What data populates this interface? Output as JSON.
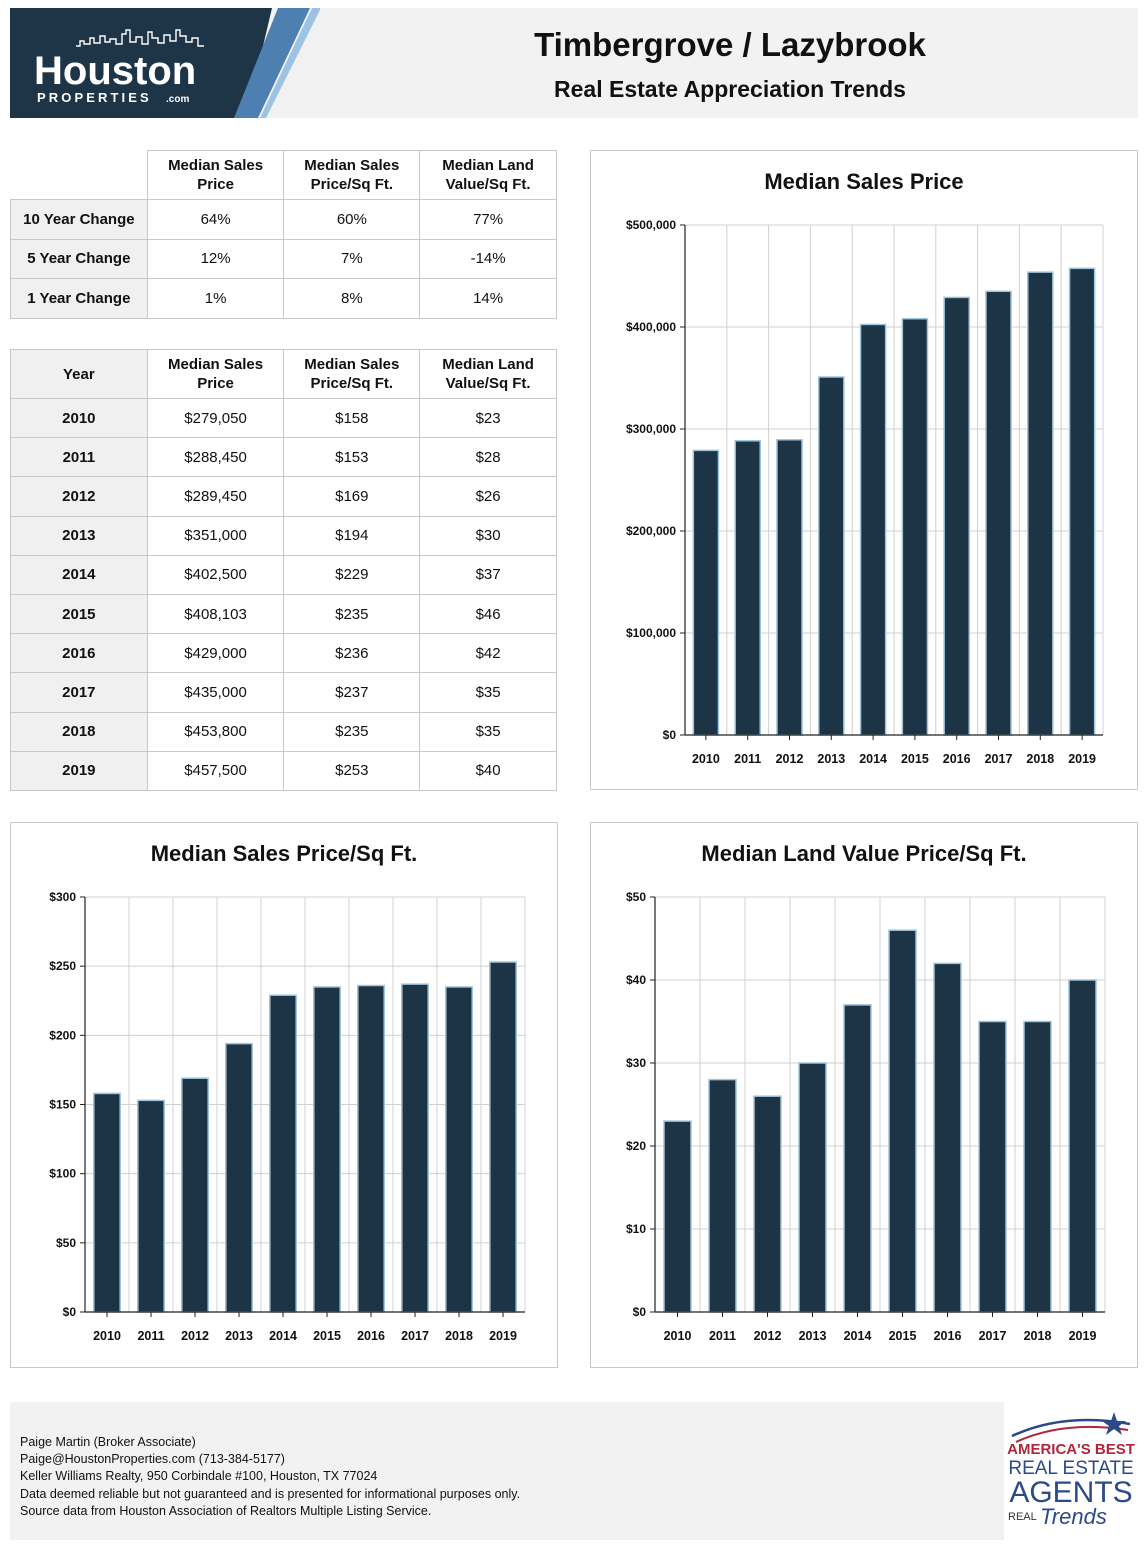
{
  "header": {
    "logo_main": "Houston",
    "logo_sub": "PROPERTIES",
    "logo_suffix": ".com",
    "title": "Timbergrove / Lazybrook",
    "subtitle": "Real Estate Appreciation Trends"
  },
  "change_table": {
    "columns": [
      "Median Sales Price",
      "Median Sales Price/Sq Ft.",
      "Median Land Value/Sq Ft."
    ],
    "rows": [
      {
        "label": "10 Year Change",
        "values": [
          "64%",
          "60%",
          "77%"
        ]
      },
      {
        "label": "5 Year Change",
        "values": [
          "12%",
          "7%",
          "-14%"
        ]
      },
      {
        "label": "1 Year Change",
        "values": [
          "1%",
          "8%",
          "14%"
        ]
      }
    ]
  },
  "year_table": {
    "year_header": "Year",
    "columns": [
      "Median Sales Price",
      "Median Sales Price/Sq Ft.",
      "Median Land Value/Sq Ft."
    ],
    "rows": [
      {
        "year": "2010",
        "values": [
          "$279,050",
          "$158",
          "$23"
        ]
      },
      {
        "year": "2011",
        "values": [
          "$288,450",
          "$153",
          "$28"
        ]
      },
      {
        "year": "2012",
        "values": [
          "$289,450",
          "$169",
          "$26"
        ]
      },
      {
        "year": "2013",
        "values": [
          "$351,000",
          "$194",
          "$30"
        ]
      },
      {
        "year": "2014",
        "values": [
          "$402,500",
          "$229",
          "$37"
        ]
      },
      {
        "year": "2015",
        "values": [
          "$408,103",
          "$235",
          "$46"
        ]
      },
      {
        "year": "2016",
        "values": [
          "$429,000",
          "$236",
          "$42"
        ]
      },
      {
        "year": "2017",
        "values": [
          "$435,000",
          "$237",
          "$35"
        ]
      },
      {
        "year": "2018",
        "values": [
          "$453,800",
          "$235",
          "$35"
        ]
      },
      {
        "year": "2019",
        "values": [
          "$457,500",
          "$253",
          "$40"
        ]
      }
    ]
  },
  "chart_data": [
    {
      "id": "price",
      "type": "bar",
      "title": "Median Sales Price",
      "categories": [
        "2010",
        "2011",
        "2012",
        "2013",
        "2014",
        "2015",
        "2016",
        "2017",
        "2018",
        "2019"
      ],
      "values": [
        279050,
        288450,
        289450,
        351000,
        402500,
        408103,
        429000,
        435000,
        453800,
        457500
      ],
      "ylim": [
        0,
        500000
      ],
      "yticks": [
        0,
        100000,
        200000,
        300000,
        400000,
        500000
      ],
      "ytick_labels": [
        "$0",
        "$100,000",
        "$200,000",
        "$300,000",
        "$400,000",
        "$500,000"
      ],
      "grid": true,
      "bar_color": "#1c3446"
    },
    {
      "id": "sqft",
      "type": "bar",
      "title": "Median Sales Price/Sq Ft.",
      "categories": [
        "2010",
        "2011",
        "2012",
        "2013",
        "2014",
        "2015",
        "2016",
        "2017",
        "2018",
        "2019"
      ],
      "values": [
        158,
        153,
        169,
        194,
        229,
        235,
        236,
        237,
        235,
        253
      ],
      "ylim": [
        0,
        300
      ],
      "yticks": [
        0,
        50,
        100,
        150,
        200,
        250,
        300
      ],
      "ytick_labels": [
        "$0",
        "$50",
        "$100",
        "$150",
        "$200",
        "$250",
        "$300"
      ],
      "grid": true,
      "bar_color": "#1c3446"
    },
    {
      "id": "land",
      "type": "bar",
      "title": "Median Land Value Price/Sq Ft.",
      "categories": [
        "2010",
        "2011",
        "2012",
        "2013",
        "2014",
        "2015",
        "2016",
        "2017",
        "2018",
        "2019"
      ],
      "values": [
        23,
        28,
        26,
        30,
        37,
        46,
        42,
        35,
        35,
        40
      ],
      "ylim": [
        0,
        50
      ],
      "yticks": [
        0,
        10,
        20,
        30,
        40,
        50
      ],
      "ytick_labels": [
        "$0",
        "$10",
        "$20",
        "$30",
        "$40",
        "$50"
      ],
      "grid": true,
      "bar_color": "#1c3446"
    }
  ],
  "footer": {
    "lines": [
      "Paige Martin (Broker Associate)",
      "Paige@HoustonProperties.com (713-384-5177)",
      "Keller Williams Realty, 950 Corbindale #100, Houston, TX 77024",
      "Data deemed reliable but not guaranteed and is presented for informational purposes only.",
      "Source data from Houston Association of Realtors Multiple Listing Service."
    ],
    "award_line1": "AMERICA'S BEST",
    "award_line2": "REAL ESTATE",
    "award_line3": "AGENTS",
    "award_brand_a": "REAL",
    "award_brand_b": "Trends"
  }
}
